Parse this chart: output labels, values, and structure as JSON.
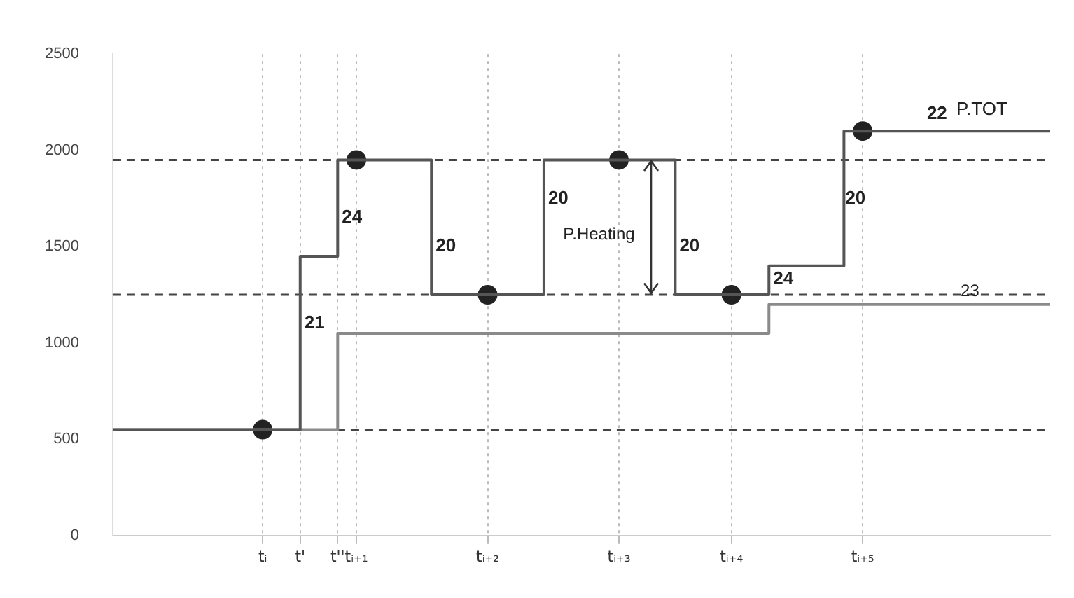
{
  "chart_data": {
    "type": "step",
    "ylim": [
      0,
      2500
    ],
    "yticks": [
      0,
      500,
      1000,
      1500,
      2000,
      2500
    ],
    "categories": [
      null,
      null,
      null,
      null,
      null,
      null,
      null,
      null,
      "tᵢ",
      null,
      "t'",
      null,
      "t''",
      "tᵢ₊₁",
      null,
      null,
      null,
      null,
      null,
      null,
      "tᵢ₊₂",
      null,
      null,
      null,
      null,
      null,
      null,
      "tᵢ₊₃",
      null,
      null,
      null,
      null,
      null,
      "tᵢ₊₄",
      null,
      null,
      null,
      null,
      null,
      null,
      "tᵢ₊₅",
      null,
      null,
      null,
      null,
      null,
      null,
      null,
      null,
      null,
      null
    ],
    "grid": "x",
    "legend": false,
    "line_style": "solid",
    "series": [
      {
        "name": "P.TOT",
        "color": "#555555",
        "marker": "none",
        "values": [
          550,
          550,
          550,
          550,
          550,
          550,
          550,
          550,
          550,
          550,
          1450,
          1450,
          1950,
          1950,
          1950,
          1950,
          1950,
          1250,
          1250,
          1250,
          1250,
          1250,
          1250,
          1950,
          1950,
          1950,
          1950,
          1950,
          1950,
          1950,
          1250,
          1250,
          1250,
          1250,
          1250,
          1400,
          1400,
          1400,
          1400,
          2100,
          2100,
          2100,
          2100,
          2100,
          2100,
          2100,
          2100,
          2100,
          2100,
          2100,
          2100
        ]
      },
      {
        "color": "#8a8a8a",
        "marker": "none",
        "values": [
          550,
          550,
          550,
          550,
          550,
          550,
          550,
          550,
          550,
          550,
          550,
          550,
          1050,
          1050,
          1050,
          1050,
          1050,
          1050,
          1050,
          1050,
          1050,
          1050,
          1050,
          1050,
          1050,
          1050,
          1050,
          1050,
          1050,
          1050,
          1050,
          1050,
          1050,
          1050,
          1050,
          1200,
          1200,
          1200,
          1200,
          1200,
          1200,
          1200,
          1200,
          1200,
          1200,
          1200,
          1200,
          1200,
          1200,
          1200,
          1200
        ]
      },
      {
        "type": "scatter",
        "color": "#222222",
        "marker": "circle",
        "values": [
          null,
          null,
          null,
          null,
          null,
          null,
          null,
          null,
          550,
          null,
          null,
          null,
          null,
          1950,
          null,
          null,
          null,
          null,
          null,
          null,
          1250,
          null,
          null,
          null,
          null,
          null,
          null,
          1950,
          null,
          null,
          null,
          null,
          null,
          1250,
          null,
          null,
          null,
          null,
          null,
          null,
          2100,
          null,
          null,
          null,
          null,
          null,
          null,
          null,
          null,
          null,
          null
        ]
      }
    ],
    "ref_lines": [
      {
        "axis": "y",
        "value": 1950,
        "line_style": "dashed",
        "color": "#444444"
      },
      {
        "axis": "y",
        "value": 1250,
        "line_style": "dashed",
        "color": "#444444"
      },
      {
        "axis": "y",
        "value": 550,
        "line_style": "dashed",
        "color": "#444444"
      }
    ],
    "annotations": [
      "21",
      "24",
      "20",
      "20",
      "P.Heating",
      "20",
      "24",
      "20",
      "22",
      "23"
    ]
  }
}
